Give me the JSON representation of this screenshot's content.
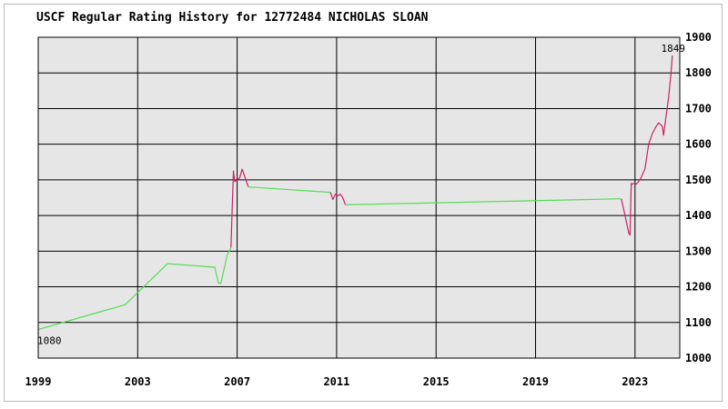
{
  "chart_data": {
    "type": "line",
    "title": "USCF Regular Rating History for 12772484 NICHOLAS SLOAN",
    "xlabel": "",
    "ylabel": "",
    "xlim": [
      1999,
      2024.8
    ],
    "ylim": [
      1000,
      1900
    ],
    "x_ticks": [
      "1999",
      "2003",
      "2007",
      "2011",
      "2015",
      "2019",
      "2023"
    ],
    "x_tick_values": [
      1999,
      2003,
      2007,
      2011,
      2015,
      2019,
      2023
    ],
    "y_ticks": [
      "1000",
      "1100",
      "1200",
      "1300",
      "1400",
      "1500",
      "1600",
      "1700",
      "1800",
      "1900"
    ],
    "y_tick_values": [
      1000,
      1100,
      1200,
      1300,
      1400,
      1500,
      1600,
      1700,
      1800,
      1900
    ],
    "grid": true,
    "background": "#e6e6e6",
    "gridColor": "#000000",
    "annotations": [
      {
        "text": "1080",
        "x": 1999.0,
        "y": 1080,
        "placement": "below"
      },
      {
        "text": "1849",
        "x": 2024.5,
        "y": 1849,
        "placement": "above"
      }
    ],
    "segments": [
      {
        "color": "#55dd55",
        "points": [
          [
            1999.0,
            1080
          ],
          [
            2001.5,
            1130
          ],
          [
            2002.5,
            1150
          ],
          [
            2004.2,
            1265
          ],
          [
            2006.1,
            1255
          ],
          [
            2006.25,
            1210
          ],
          [
            2006.35,
            1210
          ],
          [
            2006.6,
            1290
          ],
          [
            2006.75,
            1310
          ]
        ]
      },
      {
        "color": "#cc2266",
        "points": [
          [
            2006.75,
            1310
          ],
          [
            2006.85,
            1525
          ],
          [
            2006.9,
            1495
          ],
          [
            2007.1,
            1505
          ],
          [
            2007.2,
            1530
          ],
          [
            2007.35,
            1500
          ],
          [
            2007.45,
            1480
          ]
        ]
      },
      {
        "color": "#55dd55",
        "points": [
          [
            2007.45,
            1480
          ],
          [
            2010.75,
            1465
          ]
        ]
      },
      {
        "color": "#cc2266",
        "points": [
          [
            2010.75,
            1465
          ],
          [
            2010.85,
            1445
          ],
          [
            2010.95,
            1460
          ],
          [
            2011.05,
            1455
          ],
          [
            2011.15,
            1460
          ],
          [
            2011.25,
            1450
          ],
          [
            2011.35,
            1430
          ]
        ]
      },
      {
        "color": "#55dd55",
        "points": [
          [
            2011.35,
            1430
          ],
          [
            2022.45,
            1447
          ]
        ]
      },
      {
        "color": "#cc2266",
        "points": [
          [
            2022.45,
            1447
          ],
          [
            2022.6,
            1400
          ],
          [
            2022.75,
            1350
          ],
          [
            2022.8,
            1345
          ],
          [
            2022.85,
            1490
          ],
          [
            2022.9,
            1488
          ],
          [
            2023.0,
            1492
          ],
          [
            2023.05,
            1488
          ],
          [
            2023.2,
            1500
          ],
          [
            2023.4,
            1530
          ],
          [
            2023.55,
            1600
          ],
          [
            2023.7,
            1630
          ],
          [
            2023.85,
            1650
          ],
          [
            2023.95,
            1660
          ],
          [
            2024.1,
            1650
          ],
          [
            2024.15,
            1625
          ],
          [
            2024.25,
            1680
          ],
          [
            2024.35,
            1730
          ],
          [
            2024.45,
            1800
          ],
          [
            2024.5,
            1849
          ]
        ]
      }
    ]
  }
}
